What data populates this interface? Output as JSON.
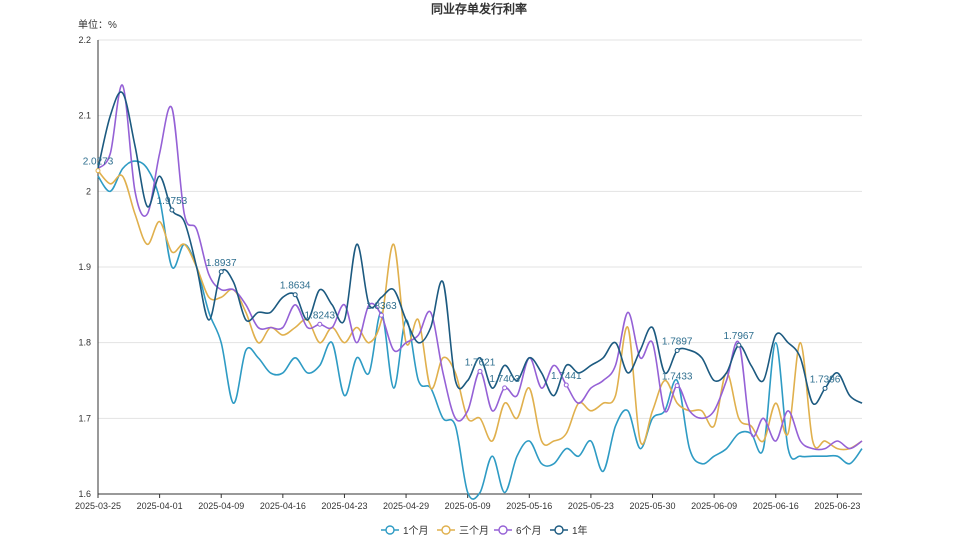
{
  "chart_data": {
    "type": "line",
    "title": "同业存单发行利率",
    "unit_label": "单位：%",
    "ylim": [
      1.6,
      2.2
    ],
    "y_ticks": [
      "1.6",
      "1.7",
      "1.8",
      "1.9",
      "2",
      "2.1",
      "2.2"
    ],
    "x_tick_labels": [
      "2025-03-25",
      "2025-04-01",
      "2025-04-09",
      "2025-04-16",
      "2025-04-23",
      "2025-04-29",
      "2025-05-09",
      "2025-05-16",
      "2025-05-23",
      "2025-05-30",
      "2025-06-09",
      "2025-06-16",
      "2025-06-23"
    ],
    "x_tick_index": [
      0,
      5,
      10,
      15,
      20,
      25,
      30,
      35,
      40,
      45,
      50,
      55,
      60
    ],
    "n_points": 63,
    "grid": true,
    "legend_position": "bottom",
    "series": [
      {
        "name": "1个月",
        "color": "#2e9bc4",
        "values": [
          2.02,
          2.0,
          2.03,
          2.04,
          2.03,
          1.99,
          1.9,
          1.93,
          1.9,
          1.84,
          1.8,
          1.72,
          1.79,
          1.78,
          1.76,
          1.76,
          1.78,
          1.76,
          1.77,
          1.8,
          1.73,
          1.78,
          1.76,
          1.84,
          1.74,
          1.83,
          1.75,
          1.74,
          1.7,
          1.69,
          1.6,
          1.6,
          1.65,
          1.6,
          1.65,
          1.67,
          1.64,
          1.64,
          1.66,
          1.65,
          1.67,
          1.63,
          1.69,
          1.71,
          1.66,
          1.7,
          1.71,
          1.75,
          1.66,
          1.64,
          1.65,
          1.66,
          1.68,
          1.68,
          1.66,
          1.8,
          1.66,
          1.65,
          1.65,
          1.65,
          1.65,
          1.64,
          1.66
        ]
      },
      {
        "name": "三个月",
        "color": "#e0b04d",
        "values": [
          2.0273,
          2.01,
          2.02,
          1.97,
          1.93,
          1.96,
          1.92,
          1.93,
          1.9,
          1.86,
          1.86,
          1.87,
          1.84,
          1.8,
          1.82,
          1.81,
          1.82,
          1.83,
          1.8,
          1.82,
          1.8,
          1.82,
          1.8,
          1.83,
          1.93,
          1.8,
          1.83,
          1.74,
          1.78,
          1.76,
          1.7,
          1.7,
          1.67,
          1.72,
          1.7,
          1.74,
          1.67,
          1.67,
          1.68,
          1.72,
          1.71,
          1.72,
          1.73,
          1.82,
          1.67,
          1.71,
          1.75,
          1.72,
          1.71,
          1.71,
          1.69,
          1.76,
          1.7,
          1.69,
          1.67,
          1.72,
          1.68,
          1.8,
          1.67,
          1.67,
          1.66,
          1.66,
          1.67
        ]
      },
      {
        "name": "6个月",
        "color": "#9561d6",
        "values": [
          2.03,
          2.05,
          2.14,
          2.0,
          1.97,
          2.05,
          2.11,
          1.97,
          1.95,
          1.89,
          1.87,
          1.87,
          1.85,
          1.82,
          1.82,
          1.82,
          1.85,
          1.82,
          1.8243,
          1.82,
          1.85,
          1.8,
          1.85,
          1.8363,
          1.79,
          1.8,
          1.81,
          1.84,
          1.76,
          1.7,
          1.71,
          1.7621,
          1.71,
          1.7403,
          1.73,
          1.78,
          1.74,
          1.77,
          1.7441,
          1.72,
          1.74,
          1.75,
          1.77,
          1.84,
          1.78,
          1.8,
          1.71,
          1.7433,
          1.71,
          1.7,
          1.71,
          1.75,
          1.8,
          1.68,
          1.7,
          1.67,
          1.71,
          1.67,
          1.66,
          1.66,
          1.67,
          1.66,
          1.67
        ]
      },
      {
        "name": "1年",
        "color": "#1c5a80",
        "values": [
          2.03,
          2.1,
          2.13,
          2.06,
          1.98,
          2.02,
          1.9753,
          1.96,
          1.9,
          1.83,
          1.8937,
          1.88,
          1.83,
          1.84,
          1.84,
          1.86,
          1.8634,
          1.83,
          1.87,
          1.85,
          1.83,
          1.93,
          1.85,
          1.86,
          1.87,
          1.83,
          1.8,
          1.82,
          1.88,
          1.75,
          1.75,
          1.78,
          1.74,
          1.77,
          1.75,
          1.78,
          1.76,
          1.73,
          1.77,
          1.76,
          1.77,
          1.78,
          1.8,
          1.76,
          1.79,
          1.82,
          1.76,
          1.7897,
          1.79,
          1.78,
          1.75,
          1.76,
          1.7967,
          1.77,
          1.75,
          1.81,
          1.8,
          1.78,
          1.72,
          1.7396,
          1.76,
          1.73,
          1.72
        ]
      }
    ],
    "data_labels": [
      {
        "series": 1,
        "index": 0,
        "text": "2.0273"
      },
      {
        "series": 3,
        "index": 6,
        "text": "1.9753"
      },
      {
        "series": 3,
        "index": 10,
        "text": "1.8937"
      },
      {
        "series": 3,
        "index": 16,
        "text": "1.8634"
      },
      {
        "series": 2,
        "index": 18,
        "text": "1.8243"
      },
      {
        "series": 2,
        "index": 23,
        "text": "1.8363"
      },
      {
        "series": 2,
        "index": 31,
        "text": "1.7621"
      },
      {
        "series": 2,
        "index": 33,
        "text": "1.7403"
      },
      {
        "series": 2,
        "index": 38,
        "text": "1.7441"
      },
      {
        "series": 2,
        "index": 47,
        "text": "1.7433"
      },
      {
        "series": 3,
        "index": 47,
        "text": "1.7897"
      },
      {
        "series": 3,
        "index": 52,
        "text": "1.7967"
      },
      {
        "series": 3,
        "index": 59,
        "text": "1.7396"
      }
    ]
  }
}
